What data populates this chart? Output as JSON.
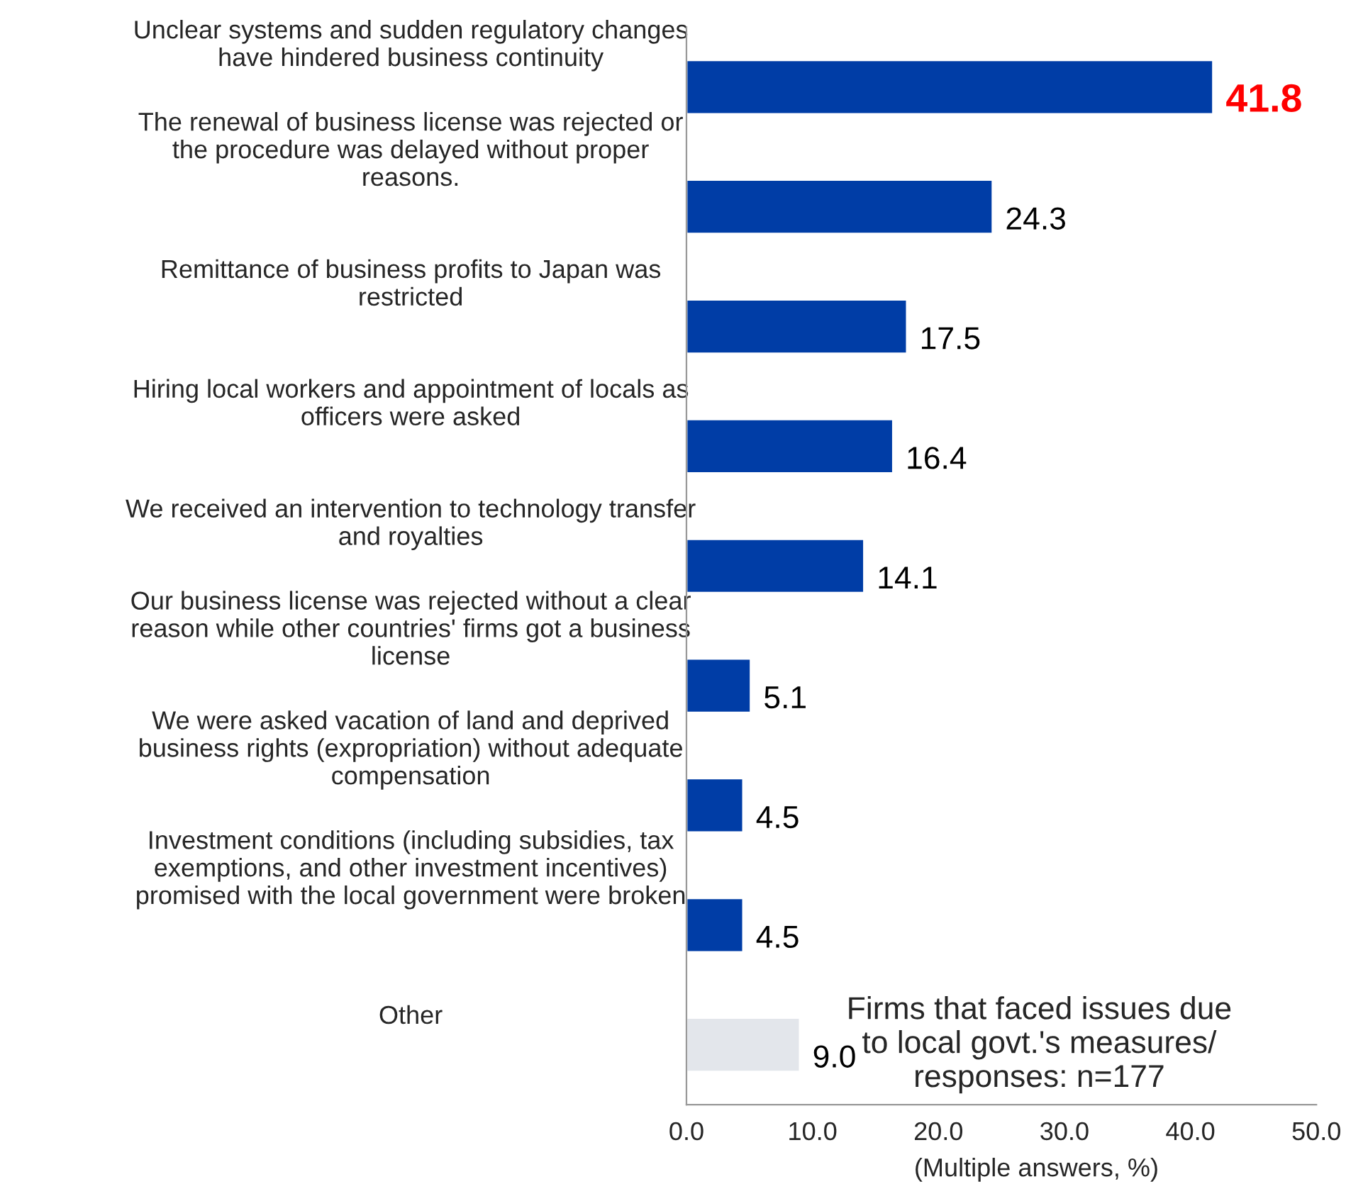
{
  "chart_data": {
    "type": "bar",
    "orientation": "horizontal",
    "categories": [
      "Unclear systems and sudden regulatory changes\nhave hindered business continuity",
      "The renewal of business license was rejected or\nthe procedure was delayed without proper\nreasons.",
      "Remittance of business profits to Japan was\nrestricted",
      "Hiring local workers and appointment of locals as\nofficers were asked",
      "We received an intervention to technology transfer\nand royalties",
      "Our business license was rejected without a clear\nreason while other countries' firms got a business\nlicense",
      "We were asked vacation of land and deprived\nbusiness rights (expropriation) without adequate\ncompensation",
      "Investment conditions (including subsidies, tax\nexemptions, and other investment incentives)\npromised with the local government were broken",
      "Other"
    ],
    "values": [
      41.8,
      24.3,
      17.5,
      16.4,
      14.1,
      5.1,
      4.5,
      4.5,
      9.0
    ],
    "colors": [
      "#003da6",
      "#003da6",
      "#003da6",
      "#003da6",
      "#003da6",
      "#003da6",
      "#003da6",
      "#003da6",
      "#e3e6eb"
    ],
    "value_labels": [
      "41.8",
      "24.3",
      "17.5",
      "16.4",
      "14.1",
      "5.1",
      "4.5",
      "4.5",
      "9.0"
    ],
    "xlim": [
      0,
      50
    ],
    "xticks": [
      {
        "value": 0,
        "label": "0.0"
      },
      {
        "value": 10,
        "label": "10.0"
      },
      {
        "value": 20,
        "label": "20.0"
      },
      {
        "value": 30,
        "label": "30.0"
      },
      {
        "value": 40,
        "label": "40.0"
      },
      {
        "value": 50,
        "label": "50.0"
      }
    ],
    "annotations": [
      "(Multiple answers, %)",
      "Firms that faced issues due\nto local govt.'s measures/\nresponses: n=177"
    ],
    "grid": false,
    "legend": false
  }
}
